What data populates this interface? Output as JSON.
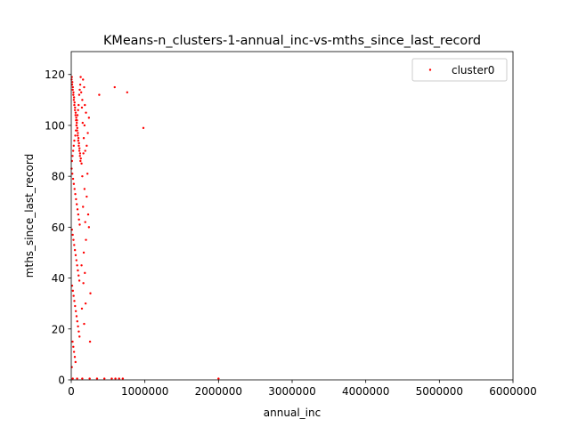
{
  "chart_data": {
    "type": "scatter",
    "title": "KMeans-n_clusters-1-annual_inc-vs-mths_since_last_record",
    "xlabel": "annual_inc",
    "ylabel": "mths_since_last_record",
    "xlim": [
      0,
      6000000
    ],
    "ylim": [
      0,
      129
    ],
    "xticks": [
      0,
      1000000,
      2000000,
      3000000,
      4000000,
      5000000,
      6000000
    ],
    "xtick_labels": [
      "0",
      "1000000",
      "2000000",
      "3000000",
      "4000000",
      "5000000",
      "6000000"
    ],
    "yticks": [
      0,
      20,
      40,
      60,
      80,
      100,
      120
    ],
    "ytick_labels": [
      "0",
      "20",
      "40",
      "60",
      "80",
      "100",
      "120"
    ],
    "grid": false,
    "legend": {
      "position": "top-right",
      "entries": [
        "cluster0"
      ]
    },
    "colors": {
      "cluster0": "#ff0000"
    },
    "series": [
      {
        "name": "cluster0",
        "points": [
          [
            5000,
            118
          ],
          [
            12000,
            116
          ],
          [
            20000,
            114
          ],
          [
            28000,
            112
          ],
          [
            35000,
            110
          ],
          [
            42000,
            108
          ],
          [
            50000,
            106
          ],
          [
            58000,
            104
          ],
          [
            65000,
            102
          ],
          [
            72000,
            100
          ],
          [
            80000,
            98
          ],
          [
            88000,
            96
          ],
          [
            95000,
            94
          ],
          [
            102000,
            92
          ],
          [
            110000,
            90
          ],
          [
            118000,
            88
          ],
          [
            125000,
            86
          ],
          [
            8000,
            119
          ],
          [
            15000,
            117
          ],
          [
            22000,
            115
          ],
          [
            30000,
            113
          ],
          [
            38000,
            111
          ],
          [
            45000,
            109
          ],
          [
            52000,
            107
          ],
          [
            60000,
            105
          ],
          [
            68000,
            103
          ],
          [
            75000,
            101
          ],
          [
            82000,
            99
          ],
          [
            90000,
            97
          ],
          [
            98000,
            95
          ],
          [
            105000,
            93
          ],
          [
            112000,
            91
          ],
          [
            120000,
            89
          ],
          [
            130000,
            87
          ],
          [
            140000,
            85
          ],
          [
            150000,
            110
          ],
          [
            160000,
            118
          ],
          [
            170000,
            95
          ],
          [
            180000,
            100
          ],
          [
            190000,
            90
          ],
          [
            200000,
            105
          ],
          [
            210000,
            92
          ],
          [
            225000,
            97
          ],
          [
            240000,
            103
          ],
          [
            10000,
            86
          ],
          [
            18000,
            88
          ],
          [
            26000,
            90
          ],
          [
            34000,
            92
          ],
          [
            42000,
            94
          ],
          [
            55000,
            96
          ],
          [
            63000,
            98
          ],
          [
            70000,
            100
          ],
          [
            78000,
            102
          ],
          [
            85000,
            104
          ],
          [
            93000,
            106
          ],
          [
            100000,
            108
          ],
          [
            108000,
            112
          ],
          [
            115000,
            114
          ],
          [
            122000,
            116
          ],
          [
            128000,
            119
          ],
          [
            135000,
            113
          ],
          [
            145000,
            107
          ],
          [
            155000,
            101
          ],
          [
            165000,
            89
          ],
          [
            175000,
            115
          ],
          [
            185000,
            108
          ],
          [
            380000,
            112
          ],
          [
            590000,
            115
          ],
          [
            760000,
            113
          ],
          [
            980000,
            99
          ],
          [
            5000,
            83
          ],
          [
            15000,
            81
          ],
          [
            25000,
            79
          ],
          [
            35000,
            77
          ],
          [
            45000,
            75
          ],
          [
            55000,
            73
          ],
          [
            65000,
            71
          ],
          [
            75000,
            69
          ],
          [
            85000,
            67
          ],
          [
            95000,
            65
          ],
          [
            105000,
            63
          ],
          [
            115000,
            61
          ],
          [
            10000,
            59
          ],
          [
            20000,
            57
          ],
          [
            30000,
            55
          ],
          [
            40000,
            53
          ],
          [
            50000,
            51
          ],
          [
            60000,
            49
          ],
          [
            70000,
            47
          ],
          [
            80000,
            45
          ],
          [
            90000,
            43
          ],
          [
            100000,
            41
          ],
          [
            110000,
            39
          ],
          [
            12000,
            37
          ],
          [
            22000,
            35
          ],
          [
            32000,
            33
          ],
          [
            42000,
            31
          ],
          [
            52000,
            29
          ],
          [
            62000,
            27
          ],
          [
            72000,
            25
          ],
          [
            82000,
            23
          ],
          [
            92000,
            21
          ],
          [
            102000,
            19
          ],
          [
            112000,
            17
          ],
          [
            18000,
            15
          ],
          [
            28000,
            13
          ],
          [
            38000,
            11
          ],
          [
            48000,
            9
          ],
          [
            58000,
            7
          ],
          [
            8000,
            5
          ],
          [
            150000,
            80
          ],
          [
            180000,
            75
          ],
          [
            210000,
            72
          ],
          [
            160000,
            68
          ],
          [
            190000,
            62
          ],
          [
            240000,
            60
          ],
          [
            200000,
            55
          ],
          [
            170000,
            50
          ],
          [
            140000,
            45
          ],
          [
            165000,
            38
          ],
          [
            260000,
            34
          ],
          [
            195000,
            30
          ],
          [
            175000,
            22
          ],
          [
            255000,
            15
          ],
          [
            220000,
            81
          ],
          [
            230000,
            65
          ],
          [
            185000,
            42
          ],
          [
            145000,
            28
          ],
          [
            20000,
            0.5
          ],
          [
            80000,
            0.5
          ],
          [
            150000,
            0.5
          ],
          [
            250000,
            0.5
          ],
          [
            350000,
            0.5
          ],
          [
            450000,
            0.5
          ],
          [
            550000,
            0.5
          ],
          [
            600000,
            0.5
          ],
          [
            650000,
            0.5
          ],
          [
            700000,
            0.5
          ],
          [
            2000000,
            0.5
          ]
        ]
      }
    ]
  }
}
